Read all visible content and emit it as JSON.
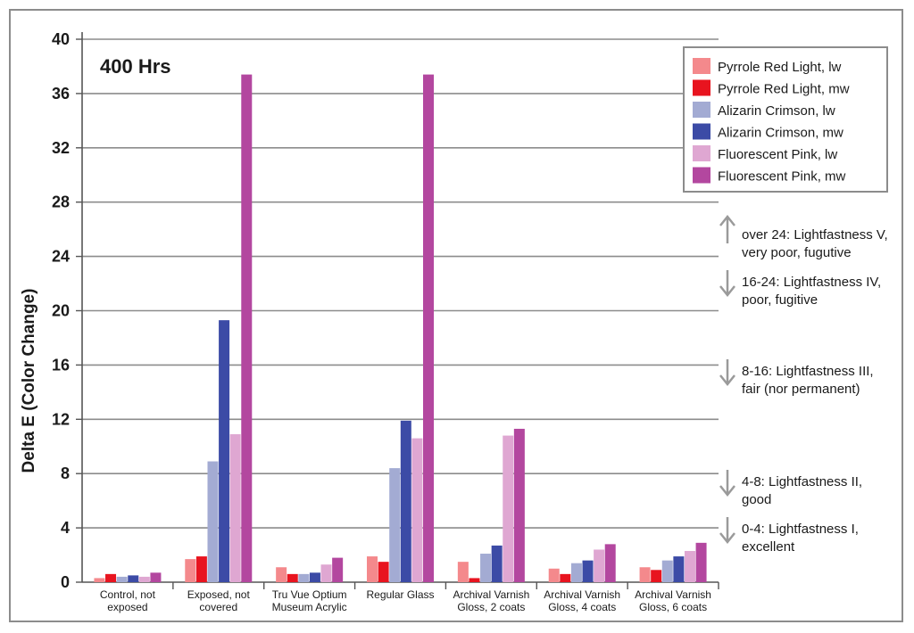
{
  "chart_data": {
    "type": "bar",
    "title": "400 Hrs",
    "xlabel": "",
    "ylabel": "Delta E (Color Change)",
    "ylim": [
      0,
      40
    ],
    "yticks": [
      0,
      4,
      8,
      12,
      16,
      20,
      24,
      28,
      32,
      36,
      40
    ],
    "grid": true,
    "legend_position": "top-right",
    "categories": [
      [
        "Control, not",
        "exposed"
      ],
      [
        "Exposed, not",
        "covered"
      ],
      [
        "Tru Vue Optium",
        "Museum Acrylic"
      ],
      [
        "Regular Glass"
      ],
      [
        "Archival Varnish",
        "Gloss, 2 coats"
      ],
      [
        "Archival Varnish",
        "Gloss, 4 coats"
      ],
      [
        "Archival Varnish",
        "Gloss, 6 coats"
      ]
    ],
    "series": [
      {
        "name": "Pyrrole Red Light, lw",
        "color": "#f4898c",
        "values": [
          0.3,
          1.7,
          1.1,
          1.9,
          1.5,
          1.0,
          1.1
        ]
      },
      {
        "name": "Pyrrole Red Light, mw",
        "color": "#e8141f",
        "values": [
          0.6,
          1.9,
          0.6,
          1.5,
          0.3,
          0.6,
          0.9
        ]
      },
      {
        "name": "Alizarin Crimson, lw",
        "color": "#a3abd3",
        "values": [
          0.4,
          8.9,
          0.6,
          8.4,
          2.1,
          1.4,
          1.6
        ]
      },
      {
        "name": "Alizarin Crimson, mw",
        "color": "#3c4ba6",
        "values": [
          0.5,
          19.3,
          0.7,
          11.9,
          2.7,
          1.6,
          1.9
        ]
      },
      {
        "name": "Fluorescent Pink, lw",
        "color": "#dfa7d2",
        "values": [
          0.4,
          10.9,
          1.3,
          10.6,
          10.8,
          2.4,
          2.3
        ]
      },
      {
        "name": "Fluorescent Pink, mw",
        "color": "#b3479f",
        "values": [
          0.7,
          37.4,
          1.8,
          37.4,
          11.3,
          2.8,
          2.9
        ]
      }
    ],
    "annotations": [
      {
        "arrow": "up",
        "lines": [
          "over 24: Lightfastness V,",
          "very poor, fugutive"
        ]
      },
      {
        "arrow": "down",
        "lines": [
          "16-24: Lightfastness IV,",
          "poor, fugitive"
        ]
      },
      {
        "arrow": "down",
        "lines": [
          "8-16: Lightfastness III,",
          "fair (nor permanent)"
        ]
      },
      {
        "arrow": "down",
        "lines": [
          "4-8: Lightfastness II,",
          "good"
        ]
      },
      {
        "arrow": "down",
        "lines": [
          "0-4: Lightfastness I,",
          "excellent"
        ]
      }
    ],
    "colors": {
      "grid": "#8c8c8c",
      "arrow": "#9a9a9a",
      "frame": "#8c8c8c"
    }
  }
}
